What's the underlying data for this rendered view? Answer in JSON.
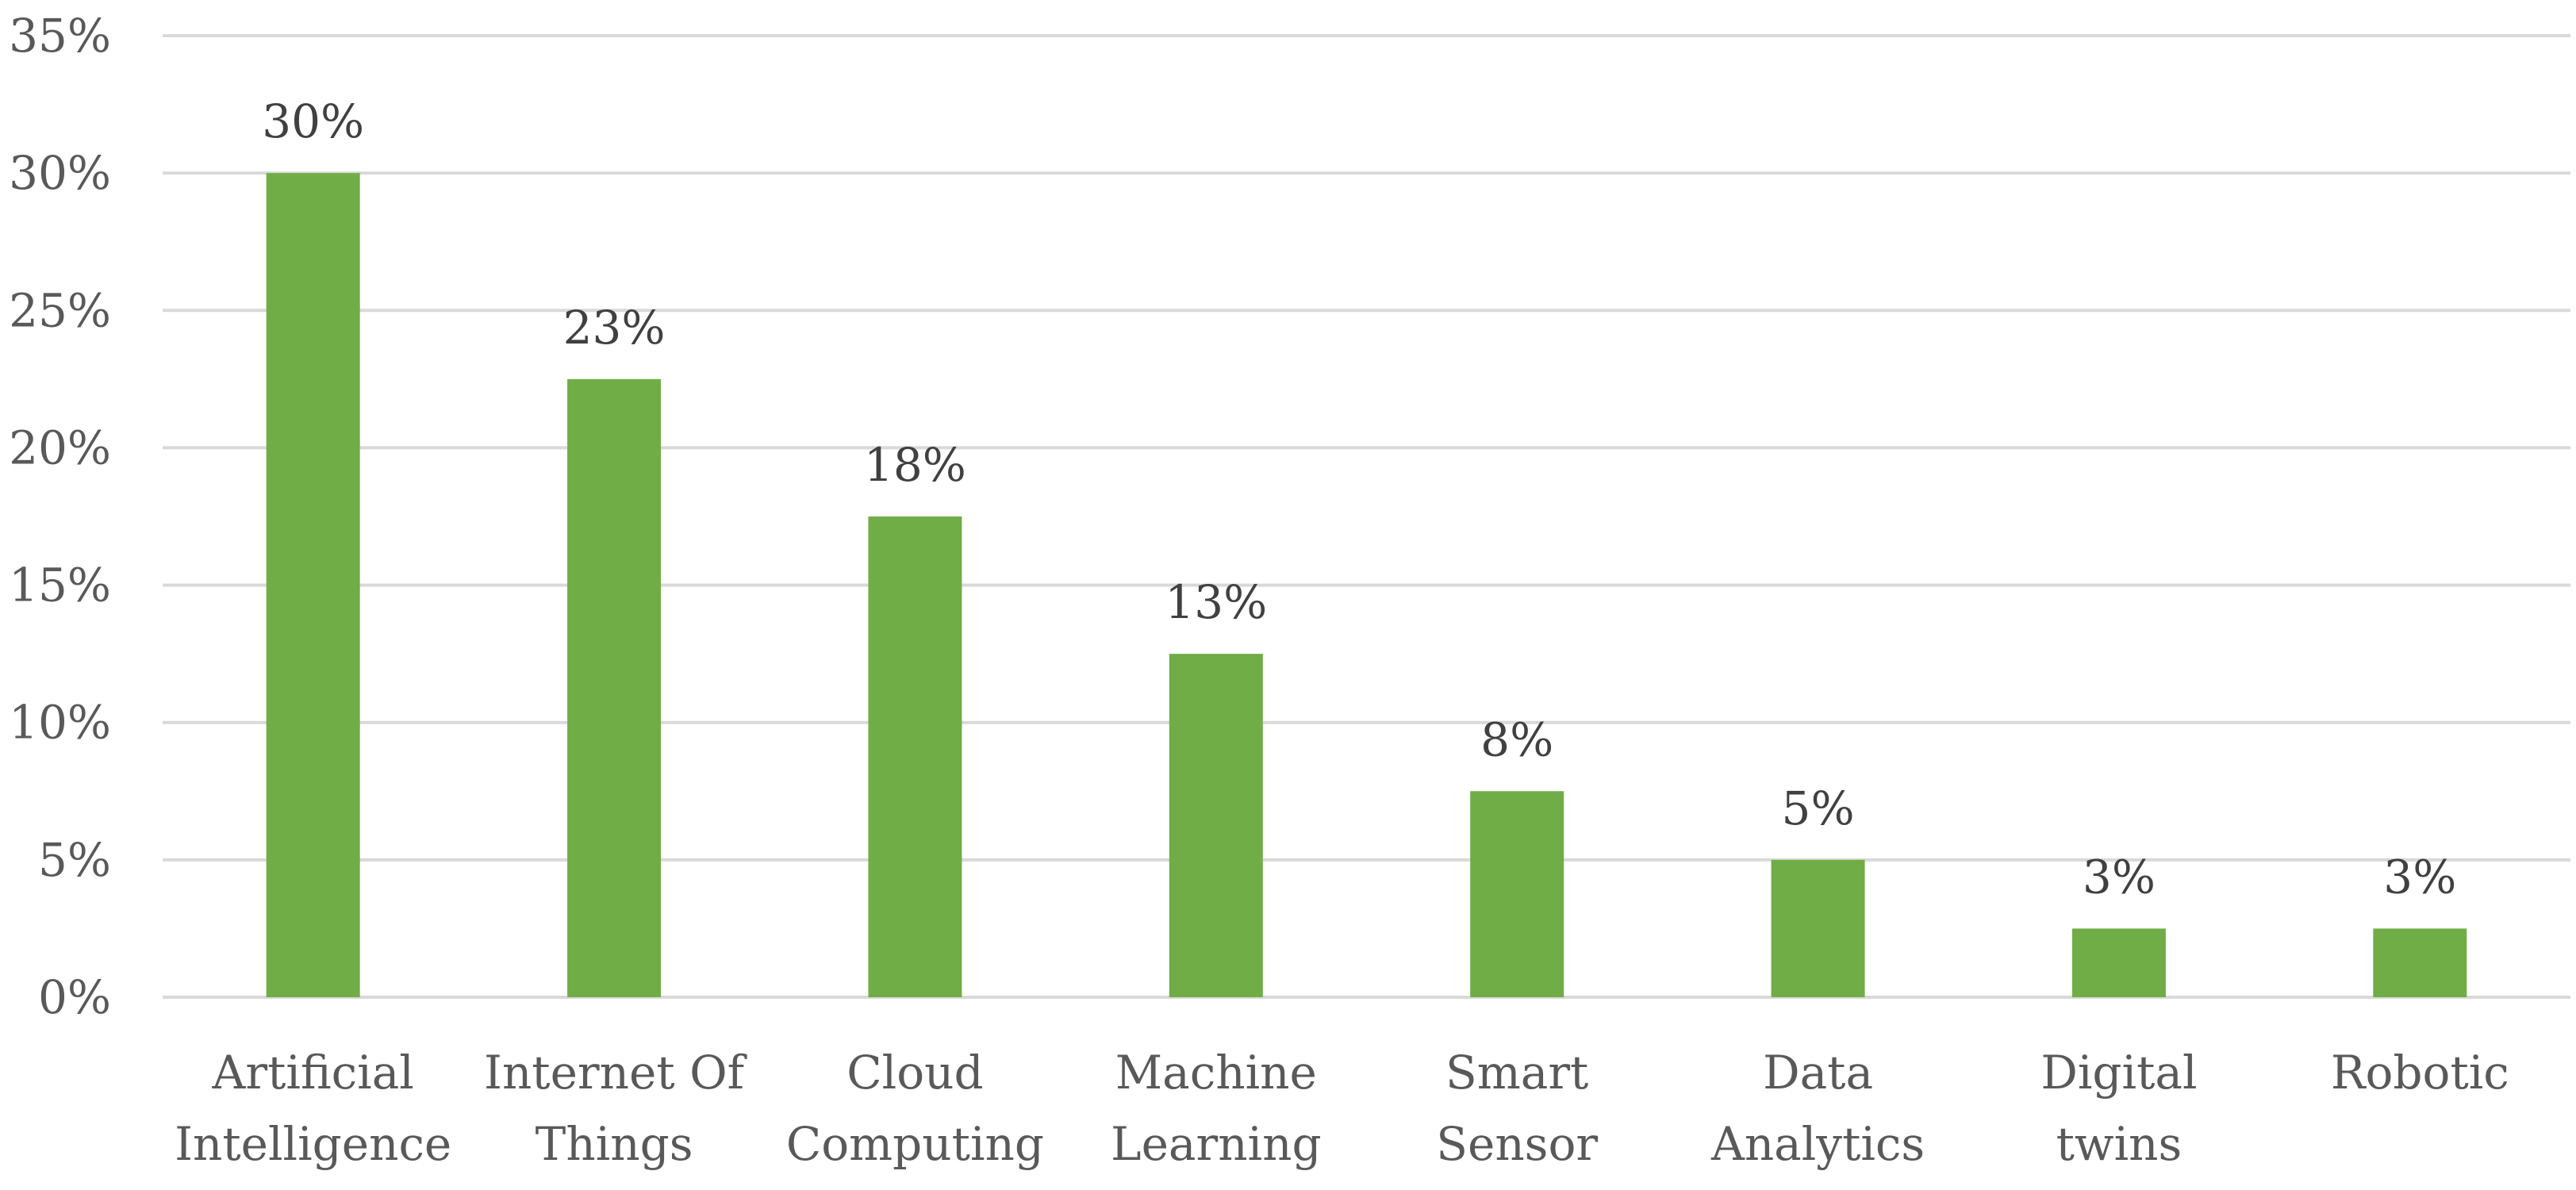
{
  "chart_data": {
    "type": "bar",
    "title": "",
    "xlabel": "",
    "ylabel": "",
    "categories": [
      [
        "Artificial",
        "Intelligence"
      ],
      [
        "Internet Of",
        "Things"
      ],
      [
        "Cloud",
        "Computing"
      ],
      [
        "Machine",
        "Learning"
      ],
      [
        "Smart",
        "Sensor"
      ],
      [
        "Data",
        "Analytics"
      ],
      [
        "Digital",
        "twins"
      ],
      [
        "Robotic"
      ]
    ],
    "values": [
      30,
      22.5,
      17.5,
      12.5,
      7.5,
      5,
      2.5,
      2.5
    ],
    "data_labels": [
      "30%",
      "23%",
      "18%",
      "13%",
      "8%",
      "5%",
      "3%",
      "3%"
    ],
    "ylim": [
      0,
      35
    ],
    "yticks": [
      0,
      5,
      10,
      15,
      20,
      25,
      30,
      35
    ],
    "ytick_labels": [
      "0%",
      "5%",
      "10%",
      "15%",
      "20%",
      "25%",
      "30%",
      "35%"
    ],
    "grid": true,
    "legend": "none",
    "colors": {
      "bar": "#70ad47",
      "grid": "#d9d9d9",
      "text": "#595959"
    }
  }
}
